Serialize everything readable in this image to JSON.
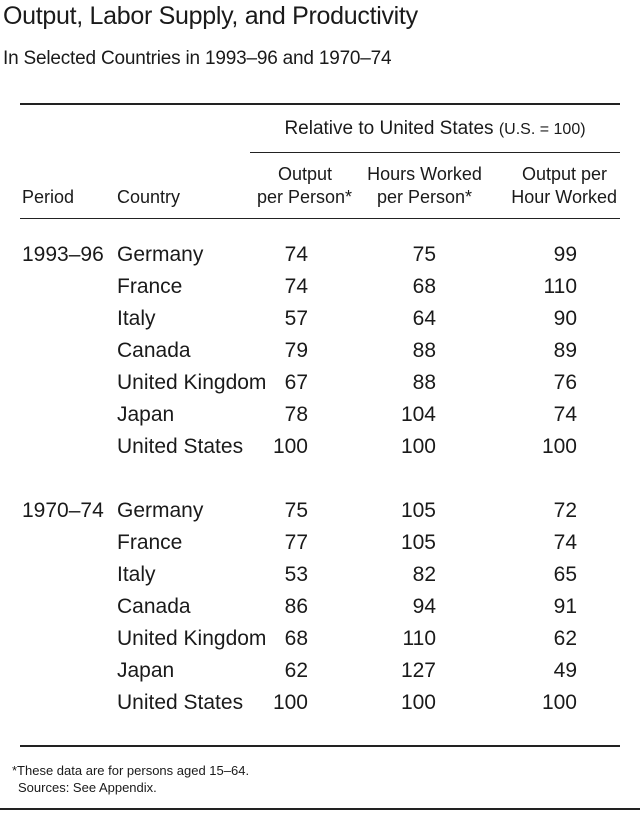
{
  "title": "Output, Labor Supply, and Productivity",
  "subtitle": "In Selected Countries in 1993–96 and 1970–74",
  "spanning_header": {
    "main": "Relative to United States",
    "note": "(U.S. = 100)"
  },
  "columns": {
    "period": "Period",
    "country": "Country",
    "output_line1": "Output",
    "output_line2": "per Person*",
    "hours_line1": "Hours Worked",
    "hours_line2": "per Person*",
    "oph_line1": "Output per",
    "oph_line2": "Hour Worked"
  },
  "groups": [
    {
      "period": "1993–96",
      "rows": [
        {
          "country": "Germany",
          "output": "74",
          "hours": "75",
          "oph": "99"
        },
        {
          "country": "France",
          "output": "74",
          "hours": "68",
          "oph": "110"
        },
        {
          "country": "Italy",
          "output": "57",
          "hours": "64",
          "oph": "90"
        },
        {
          "country": "Canada",
          "output": "79",
          "hours": "88",
          "oph": "89"
        },
        {
          "country": "United Kingdom",
          "output": "67",
          "hours": "88",
          "oph": "76"
        },
        {
          "country": "Japan",
          "output": "78",
          "hours": "104",
          "oph": "74"
        },
        {
          "country": "United States",
          "output": "100",
          "hours": "100",
          "oph": "100"
        }
      ]
    },
    {
      "period": "1970–74",
      "rows": [
        {
          "country": "Germany",
          "output": "75",
          "hours": "105",
          "oph": "72"
        },
        {
          "country": "France",
          "output": "77",
          "hours": "105",
          "oph": "74"
        },
        {
          "country": "Italy",
          "output": "53",
          "hours": "82",
          "oph": "65"
        },
        {
          "country": "Canada",
          "output": "86",
          "hours": "94",
          "oph": "91"
        },
        {
          "country": "United Kingdom",
          "output": "68",
          "hours": "110",
          "oph": "62"
        },
        {
          "country": "Japan",
          "output": "62",
          "hours": "127",
          "oph": "49"
        },
        {
          "country": "United States",
          "output": "100",
          "hours": "100",
          "oph": "100"
        }
      ]
    }
  ],
  "footnotes": {
    "note": "*These data are for persons aged 15–64.",
    "sources": "Sources: See Appendix."
  }
}
